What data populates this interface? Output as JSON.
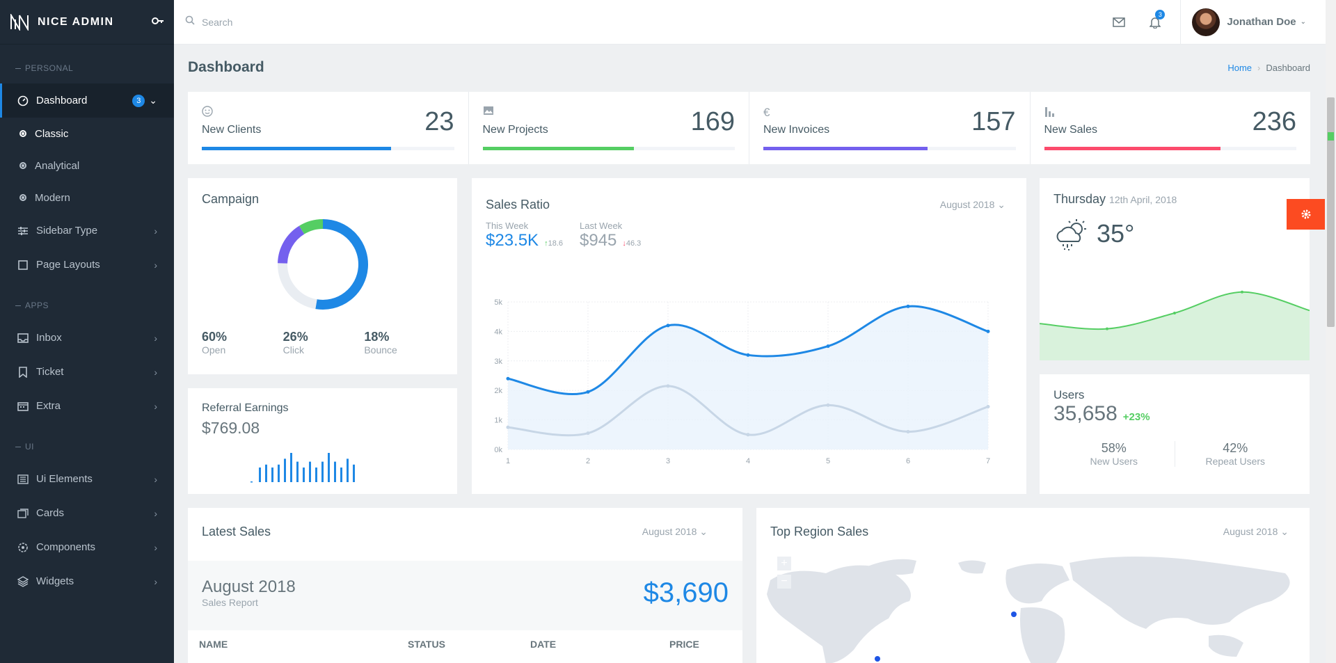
{
  "brand": {
    "name": "NICE ADMIN"
  },
  "sidebar": {
    "cap_personal": "PERSONAL",
    "dashboard": {
      "label": "Dashboard",
      "badge": "3"
    },
    "sub": [
      "Classic",
      "Analytical",
      "Modern"
    ],
    "sidebar_type": "Sidebar Type",
    "page_layouts": "Page Layouts",
    "cap_apps": "APPS",
    "inbox": "Inbox",
    "ticket": "Ticket",
    "extra": "Extra",
    "cap_ui": "UI",
    "ui_elements": "Ui Elements",
    "cards": "Cards",
    "components": "Components",
    "widgets": "Widgets"
  },
  "topbar": {
    "search_placeholder": "Search",
    "notif_count": "3",
    "user_name": "Jonathan Doe"
  },
  "page": {
    "title": "Dashboard",
    "crumb_home": "Home",
    "crumb_current": "Dashboard"
  },
  "stats": [
    {
      "label": "New Clients",
      "value": "23",
      "percent": 75,
      "color": "#1e88e5"
    },
    {
      "label": "New Projects",
      "value": "169",
      "percent": 60,
      "color": "#55ce63"
    },
    {
      "label": "New Invoices",
      "value": "157",
      "percent": 65,
      "color": "#7460ee"
    },
    {
      "label": "New Sales",
      "value": "236",
      "percent": 70,
      "color": "#fc4b6c"
    }
  ],
  "campaign": {
    "title": "Campaign",
    "items": [
      {
        "pct": "60%",
        "label": "Open",
        "value": 60,
        "color": "#1e88e5"
      },
      {
        "pct": "26%",
        "label": "Click",
        "value": 26,
        "color": "#e9edf2"
      },
      {
        "pct": "18%",
        "label": "Bounce",
        "value": 18,
        "color": "#7460ee"
      }
    ],
    "green_value": 10
  },
  "referral": {
    "title": "Referral Earnings",
    "value": "$769.08",
    "bars": [
      5,
      6,
      5,
      6,
      8,
      10,
      7,
      5,
      7,
      5,
      7,
      10,
      7,
      5,
      8,
      6
    ]
  },
  "sales_ratio": {
    "title": "Sales Ratio",
    "period": "August 2018",
    "this_week_label": "This Week",
    "this_week_value": "$23.5K",
    "this_week_change": "18.6",
    "last_week_label": "Last Week",
    "last_week_value": "$945",
    "last_week_change": "46.3"
  },
  "chart_data": {
    "type": "line",
    "x": [
      1,
      2,
      3,
      4,
      5,
      6,
      7
    ],
    "ylim": [
      0,
      5000
    ],
    "yticks": [
      "0k",
      "1k",
      "2k",
      "3k",
      "4k",
      "5k"
    ],
    "series": [
      {
        "values": [
          2400,
          1950,
          4200,
          3200,
          3500,
          4850,
          4000
        ],
        "color": "#1e88e5"
      },
      {
        "values": [
          750,
          550,
          2150,
          500,
          1500,
          600,
          1450
        ],
        "color": "#c7d6e6"
      }
    ]
  },
  "weather": {
    "day": "Thursday",
    "date": "12th April, 2018",
    "temp": "35",
    "degree": "°",
    "sparkline": [
      14,
      12,
      18,
      26,
      19
    ]
  },
  "users": {
    "title": "Users",
    "count": "35,658",
    "change": "+23%",
    "new_pct": "58%",
    "new_label": "New Users",
    "repeat_pct": "42%",
    "repeat_label": "Repeat Users"
  },
  "latest_sales": {
    "title": "Latest Sales",
    "period": "August 2018",
    "month": "August 2018",
    "report": "Sales Report",
    "total": "$3,690",
    "cols": [
      "NAME",
      "STATUS",
      "DATE",
      "PRICE"
    ]
  },
  "top_region": {
    "title": "Top Region Sales",
    "period": "August 2018",
    "zoom_in": "+",
    "zoom_out": "−"
  }
}
